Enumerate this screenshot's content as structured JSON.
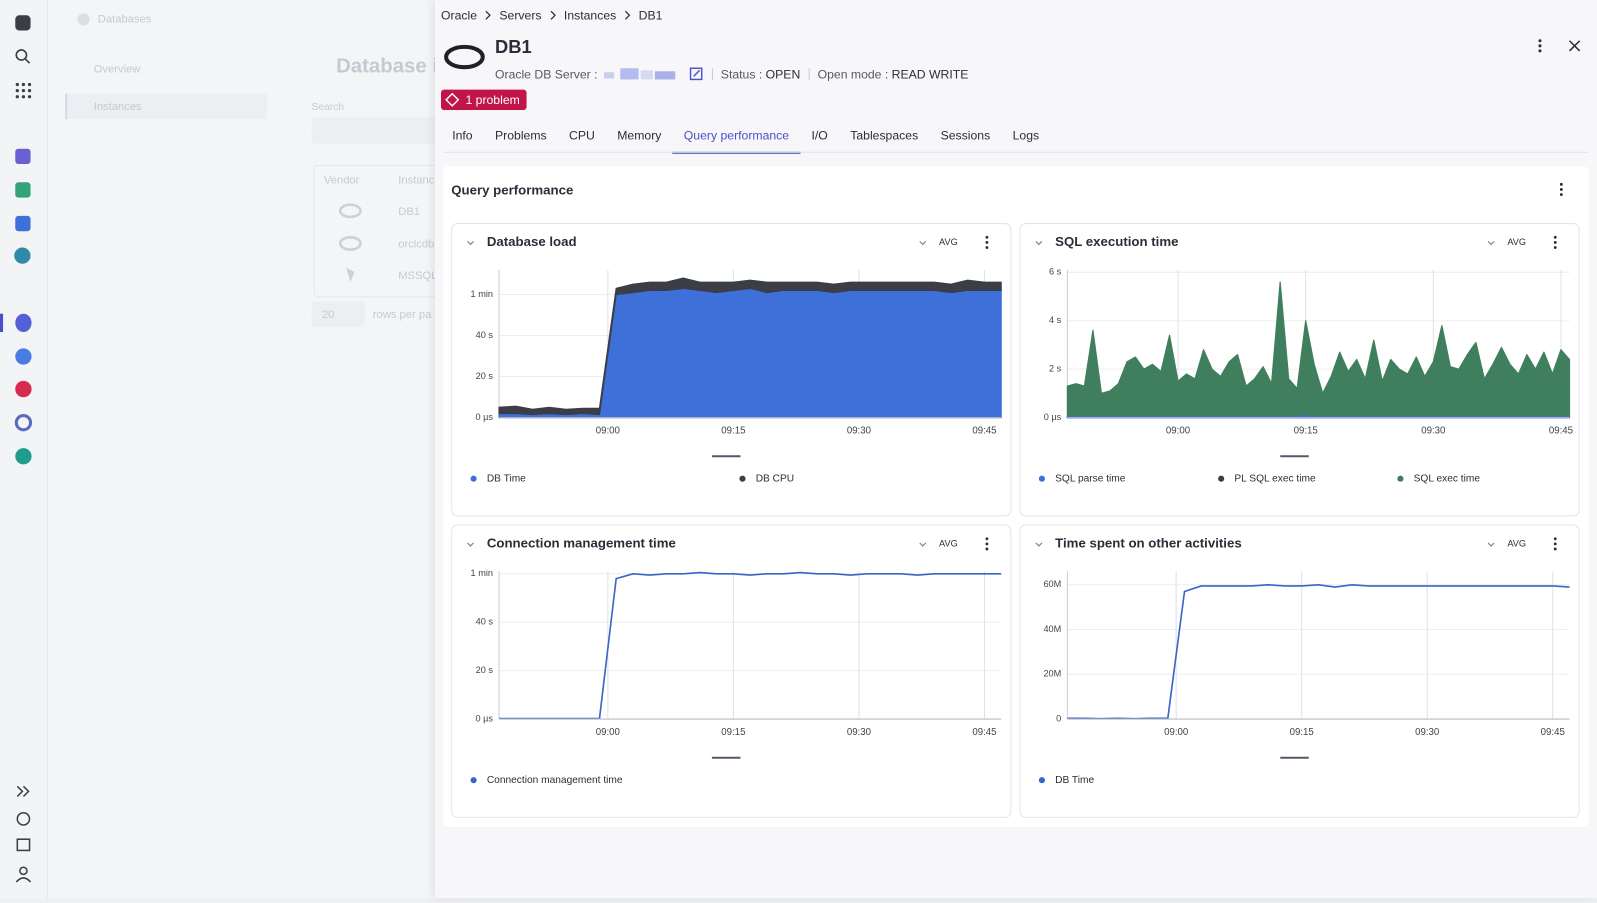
{
  "nav": {
    "breadcrumb": [
      "Oracle",
      "Servers",
      "Instances",
      "DB1"
    ]
  },
  "background": {
    "section": "Databases",
    "menu": [
      "Overview",
      "Instances"
    ],
    "title": "Database i",
    "search_label": "Search",
    "columns": [
      "Vendor",
      "Instanc"
    ],
    "rows": [
      "DB1",
      "orclcdb",
      "MSSQL"
    ],
    "page_size": "20",
    "rows_per_page": "rows per pa"
  },
  "entity": {
    "name": "DB1",
    "server_label": "Oracle DB Server :",
    "status_label": "Status :",
    "status": "OPEN",
    "open_mode_label": "Open mode :",
    "open_mode": "READ WRITE",
    "problems": "1 problem"
  },
  "tabs": [
    "Info",
    "Problems",
    "CPU",
    "Memory",
    "Query performance",
    "I/O",
    "Tablespaces",
    "Sessions",
    "Logs"
  ],
  "active_tab": 4,
  "section_title": "Query performance",
  "chart_data": [
    {
      "type": "area",
      "title": "Database load",
      "aggregation": "AVG",
      "stacked": true,
      "grid": true,
      "x": [
        "08:47",
        "08:49",
        "08:51",
        "08:53",
        "08:55",
        "08:57",
        "08:59",
        "09:01",
        "09:03",
        "09:05",
        "09:07",
        "09:09",
        "09:11",
        "09:13",
        "09:15",
        "09:17",
        "09:19",
        "09:21",
        "09:23",
        "09:25",
        "09:27",
        "09:29",
        "09:31",
        "09:33",
        "09:35",
        "09:37",
        "09:39",
        "09:41",
        "09:43",
        "09:45",
        "09:47"
      ],
      "xlim": [
        "08:47",
        "09:47"
      ],
      "xticks": [
        "09:00",
        "09:15",
        "09:30",
        "09:45"
      ],
      "ylim": [
        0,
        72
      ],
      "yticks": [
        {
          "value": 0,
          "label": "0 µs"
        },
        {
          "value": 20,
          "label": "20 s"
        },
        {
          "value": 40,
          "label": "40 s"
        },
        {
          "value": 60,
          "label": "1 min"
        }
      ],
      "series": [
        {
          "name": "DB Time",
          "color": "#3f6fd9",
          "values": [
            2,
            2,
            1.5,
            2,
            1.5,
            2,
            1.5,
            60,
            61,
            62,
            62,
            63,
            62,
            61,
            62,
            63,
            61,
            62,
            62,
            62,
            61,
            62,
            62,
            62,
            62,
            62,
            62,
            61,
            62,
            62,
            62
          ]
        },
        {
          "name": "DB CPU",
          "color": "#3b3d47",
          "values": [
            3,
            3.5,
            2.5,
            3,
            2.5,
            2.5,
            3,
            3,
            4,
            4,
            4,
            5,
            4,
            5,
            4,
            4,
            5,
            4,
            4,
            4,
            4,
            4,
            4,
            4,
            4,
            4,
            4,
            4,
            5,
            4,
            4
          ]
        }
      ]
    },
    {
      "type": "area",
      "title": "SQL execution time",
      "aggregation": "AVG",
      "stacked": false,
      "grid": true,
      "x": [
        "08:47",
        "08:48",
        "08:49",
        "08:50",
        "08:51",
        "08:52",
        "08:53",
        "08:54",
        "08:55",
        "08:56",
        "08:57",
        "08:58",
        "08:59",
        "09:00",
        "09:01",
        "09:02",
        "09:03",
        "09:04",
        "09:05",
        "09:06",
        "09:07",
        "09:08",
        "09:09",
        "09:10",
        "09:11",
        "09:12",
        "09:13",
        "09:14",
        "09:15",
        "09:16",
        "09:17",
        "09:18",
        "09:19",
        "09:20",
        "09:21",
        "09:22",
        "09:23",
        "09:24",
        "09:25",
        "09:26",
        "09:27",
        "09:28",
        "09:29",
        "09:30",
        "09:31",
        "09:32",
        "09:33",
        "09:34",
        "09:35",
        "09:36",
        "09:37",
        "09:38",
        "09:39",
        "09:40",
        "09:41",
        "09:42",
        "09:43",
        "09:44",
        "09:45",
        "09:46"
      ],
      "xlim": [
        "08:47",
        "09:46"
      ],
      "xticks": [
        "09:00",
        "09:15",
        "09:30",
        "09:45"
      ],
      "ylim": [
        0,
        6.1
      ],
      "yticks": [
        {
          "value": 0,
          "label": "0 µs"
        },
        {
          "value": 2,
          "label": "2 s"
        },
        {
          "value": 4,
          "label": "4 s"
        },
        {
          "value": 6,
          "label": "6 s"
        }
      ],
      "series": [
        {
          "name": "SQL parse time",
          "color": "#3f6fd9",
          "values": [
            0.03,
            0.03,
            0.03,
            0.03,
            0.03,
            0.03,
            0.03,
            0.03,
            0.03,
            0.03,
            0.03,
            0.03,
            0.03,
            0.03,
            0.03,
            0.03,
            0.03,
            0.03,
            0.03,
            0.03,
            0.03,
            0.03,
            0.03,
            0.03,
            0.03,
            0.03,
            0.03,
            0.03,
            0.08,
            0.03,
            0.03,
            0.03,
            0.03,
            0.03,
            0.03,
            0.03,
            0.03,
            0.03,
            0.03,
            0.03,
            0.03,
            0.03,
            0.03,
            0.03,
            0.03,
            0.03,
            0.03,
            0.03,
            0.03,
            0.03,
            0.03,
            0.03,
            0.03,
            0.03,
            0.03,
            0.03,
            0.03,
            0.03,
            0.03,
            0.03
          ]
        },
        {
          "name": "PL SQL exec time",
          "color": "#3b3d47",
          "values": [
            0.01,
            0.01,
            0.01,
            0.01,
            0.01,
            0.01,
            0.01,
            0.01,
            0.01,
            0.01,
            0.01,
            0.01,
            0.01,
            0.01,
            0.01,
            0.01,
            0.01,
            0.01,
            0.01,
            0.01,
            0.01,
            0.01,
            0.01,
            0.01,
            0.01,
            0.01,
            0.01,
            0.01,
            0.01,
            0.01,
            0.01,
            0.01,
            0.01,
            0.01,
            0.01,
            0.01,
            0.01,
            0.01,
            0.01,
            0.01,
            0.01,
            0.01,
            0.01,
            0.01,
            0.01,
            0.01,
            0.01,
            0.01,
            0.01,
            0.01,
            0.01,
            0.01,
            0.01,
            0.01,
            0.01,
            0.01,
            0.01,
            0.01,
            0.01,
            0.01
          ]
        },
        {
          "name": "SQL exec time",
          "color": "#3f7f5e",
          "values": [
            1.3,
            1.4,
            1.3,
            3.6,
            1.0,
            1.1,
            1.4,
            2.3,
            2.5,
            2.0,
            2.2,
            1.9,
            3.4,
            1.5,
            1.8,
            1.6,
            2.8,
            2.0,
            1.7,
            2.3,
            2.6,
            1.3,
            1.6,
            2.1,
            1.4,
            5.6,
            1.6,
            1.2,
            4.0,
            2.2,
            1.0,
            1.7,
            2.7,
            1.9,
            2.4,
            1.6,
            3.2,
            1.5,
            2.4,
            2.0,
            1.8,
            2.5,
            1.7,
            2.3,
            3.8,
            2.1,
            2.0,
            2.6,
            3.1,
            1.6,
            2.2,
            2.9,
            2.2,
            1.8,
            2.6,
            2.0,
            2.7,
            1.8,
            2.8,
            2.4
          ]
        }
      ]
    },
    {
      "type": "line",
      "title": "Connection management time",
      "aggregation": "AVG",
      "grid": true,
      "x": [
        "08:47",
        "08:49",
        "08:51",
        "08:53",
        "08:55",
        "08:57",
        "08:59",
        "09:01",
        "09:03",
        "09:05",
        "09:07",
        "09:09",
        "09:11",
        "09:13",
        "09:15",
        "09:17",
        "09:19",
        "09:21",
        "09:23",
        "09:25",
        "09:27",
        "09:29",
        "09:31",
        "09:33",
        "09:35",
        "09:37",
        "09:39",
        "09:41",
        "09:43",
        "09:45",
        "09:47"
      ],
      "xlim": [
        "08:47",
        "09:47"
      ],
      "xticks": [
        "09:00",
        "09:15",
        "09:30",
        "09:45"
      ],
      "ylim": [
        0,
        61
      ],
      "yticks": [
        {
          "value": 0,
          "label": "0 µs"
        },
        {
          "value": 20,
          "label": "20 s"
        },
        {
          "value": 40,
          "label": "40 s"
        },
        {
          "value": 60,
          "label": "1 min"
        }
      ],
      "series": [
        {
          "name": "Connection management time",
          "color": "#3a64c8",
          "values": [
            0.2,
            0.2,
            0.2,
            0.2,
            0.2,
            0.2,
            0.2,
            58,
            60,
            59.5,
            60,
            60,
            60.5,
            60,
            60,
            59.5,
            60,
            60,
            60.5,
            60,
            60,
            59.5,
            60,
            60,
            60,
            59.5,
            60,
            60,
            60,
            60,
            60
          ]
        }
      ]
    },
    {
      "type": "line",
      "title": "Time spent on other activities",
      "aggregation": "AVG",
      "grid": true,
      "x": [
        "08:47",
        "08:49",
        "08:51",
        "08:53",
        "08:55",
        "08:57",
        "08:59",
        "09:01",
        "09:03",
        "09:05",
        "09:07",
        "09:09",
        "09:11",
        "09:13",
        "09:15",
        "09:17",
        "09:19",
        "09:21",
        "09:23",
        "09:25",
        "09:27",
        "09:29",
        "09:31",
        "09:33",
        "09:35",
        "09:37",
        "09:39",
        "09:41",
        "09:43",
        "09:45",
        "09:47"
      ],
      "xlim": [
        "08:47",
        "09:47"
      ],
      "xticks": [
        "09:00",
        "09:15",
        "09:30",
        "09:45"
      ],
      "ylim": [
        0,
        66000000
      ],
      "yticks": [
        0,
        {
          "value": 20000000,
          "label": "20M"
        },
        {
          "value": 40000000,
          "label": "40M"
        },
        {
          "value": 60000000,
          "label": "60M"
        }
      ],
      "series": [
        {
          "name": "DB Time",
          "color": "#3a64c8",
          "values": [
            300000,
            300000,
            200000,
            300000,
            200000,
            300000,
            300000,
            57000000,
            59500000,
            59500000,
            59500000,
            59500000,
            60000000,
            59500000,
            59500000,
            60000000,
            59000000,
            60000000,
            59500000,
            59500000,
            59500000,
            59500000,
            59500000,
            59500000,
            59500000,
            59500000,
            59500000,
            59500000,
            59500000,
            59500000,
            59000000
          ]
        }
      ]
    }
  ]
}
